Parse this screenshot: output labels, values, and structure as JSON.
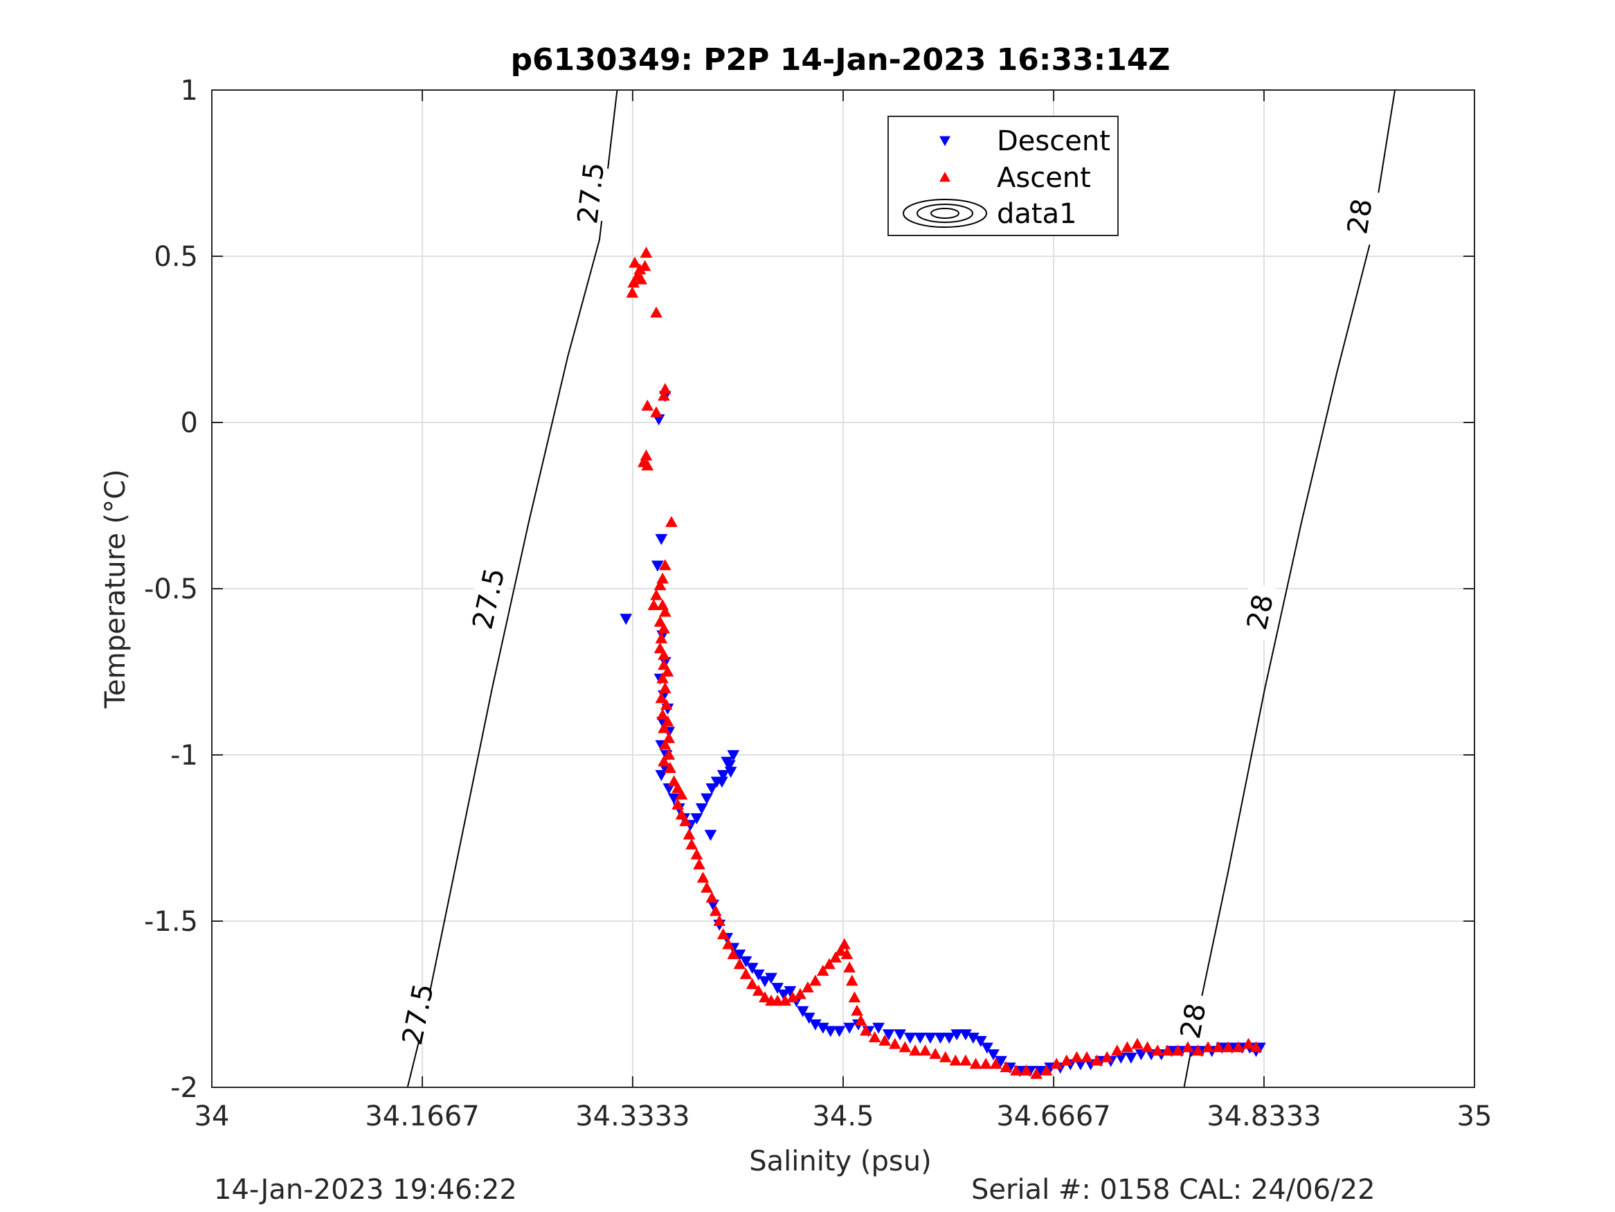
{
  "chart_data": {
    "type": "scatter",
    "title": "p6130349: P2P 14-Jan-2023 16:33:14Z",
    "xlabel": "Salinity (psu)",
    "ylabel": "Temperature (°C)",
    "xlim": [
      34,
      35
    ],
    "ylim": [
      -2,
      1
    ],
    "xticks": [
      34,
      34.1667,
      34.3333,
      34.5,
      34.6667,
      34.8333,
      35
    ],
    "xtick_labels": [
      "34",
      "34.1667",
      "34.3333",
      "34.5",
      "34.6667",
      "34.8333",
      "35"
    ],
    "yticks": [
      -2,
      -1.5,
      -1,
      -0.5,
      0,
      0.5,
      1
    ],
    "ytick_labels": [
      "-2",
      "-1.5",
      "-1",
      "-0.5",
      "0",
      "0.5",
      "1"
    ],
    "grid": true,
    "legend_position": "top-center",
    "legend": [
      "Descent",
      "Ascent",
      "data1"
    ],
    "series": [
      {
        "name": "Descent",
        "marker": "triangle-down",
        "color": "#0000ff",
        "points": [
          [
            34.328,
            -0.59
          ],
          [
            34.359,
            0.08
          ],
          [
            34.354,
            0.01
          ],
          [
            34.356,
            -0.35
          ],
          [
            34.353,
            -0.43
          ],
          [
            34.357,
            -0.64
          ],
          [
            34.359,
            -0.72
          ],
          [
            34.355,
            -0.77
          ],
          [
            34.358,
            -0.82
          ],
          [
            34.361,
            -0.86
          ],
          [
            34.357,
            -0.9
          ],
          [
            34.362,
            -0.93
          ],
          [
            34.356,
            -0.97
          ],
          [
            34.36,
            -1.0
          ],
          [
            34.359,
            -1.04
          ],
          [
            34.356,
            -1.06
          ],
          [
            34.362,
            -1.1
          ],
          [
            34.366,
            -1.13
          ],
          [
            34.37,
            -1.16
          ],
          [
            34.374,
            -1.19
          ],
          [
            34.379,
            -1.21
          ],
          [
            34.384,
            -1.19
          ],
          [
            34.388,
            -1.16
          ],
          [
            34.392,
            -1.13
          ],
          [
            34.396,
            -1.1
          ],
          [
            34.4,
            -1.08
          ],
          [
            34.405,
            -1.06
          ],
          [
            34.41,
            -1.03
          ],
          [
            34.413,
            -1.0
          ],
          [
            34.408,
            -1.02
          ],
          [
            34.411,
            -1.05
          ],
          [
            34.404,
            -1.08
          ],
          [
            34.395,
            -1.24
          ],
          [
            34.397,
            -1.45
          ],
          [
            34.402,
            -1.51
          ],
          [
            34.408,
            -1.55
          ],
          [
            34.413,
            -1.58
          ],
          [
            34.418,
            -1.6
          ],
          [
            34.423,
            -1.62
          ],
          [
            34.428,
            -1.64
          ],
          [
            34.433,
            -1.66
          ],
          [
            34.438,
            -1.68
          ],
          [
            34.443,
            -1.67
          ],
          [
            34.448,
            -1.7
          ],
          [
            34.453,
            -1.72
          ],
          [
            34.458,
            -1.71
          ],
          [
            34.463,
            -1.74
          ],
          [
            34.468,
            -1.77
          ],
          [
            34.473,
            -1.79
          ],
          [
            34.478,
            -1.81
          ],
          [
            34.484,
            -1.82
          ],
          [
            34.49,
            -1.83
          ],
          [
            34.497,
            -1.83
          ],
          [
            34.505,
            -1.82
          ],
          [
            34.512,
            -1.81
          ],
          [
            34.52,
            -1.83
          ],
          [
            34.528,
            -1.82
          ],
          [
            34.536,
            -1.84
          ],
          [
            34.545,
            -1.84
          ],
          [
            34.553,
            -1.85
          ],
          [
            34.561,
            -1.85
          ],
          [
            34.569,
            -1.85
          ],
          [
            34.577,
            -1.85
          ],
          [
            34.584,
            -1.85
          ],
          [
            34.59,
            -1.84
          ],
          [
            34.597,
            -1.84
          ],
          [
            34.603,
            -1.85
          ],
          [
            34.609,
            -1.86
          ],
          [
            34.614,
            -1.88
          ],
          [
            34.619,
            -1.9
          ],
          [
            34.625,
            -1.92
          ],
          [
            34.632,
            -1.94
          ],
          [
            34.64,
            -1.95
          ],
          [
            34.648,
            -1.95
          ],
          [
            34.656,
            -1.95
          ],
          [
            34.664,
            -1.94
          ],
          [
            34.672,
            -1.94
          ],
          [
            34.68,
            -1.93
          ],
          [
            34.688,
            -1.93
          ],
          [
            34.696,
            -1.93
          ],
          [
            34.704,
            -1.92
          ],
          [
            34.712,
            -1.92
          ],
          [
            34.72,
            -1.91
          ],
          [
            34.728,
            -1.91
          ],
          [
            34.736,
            -1.9
          ],
          [
            34.744,
            -1.9
          ],
          [
            34.752,
            -1.9
          ],
          [
            34.76,
            -1.89
          ],
          [
            34.768,
            -1.89
          ],
          [
            34.776,
            -1.89
          ],
          [
            34.784,
            -1.89
          ],
          [
            34.792,
            -1.89
          ],
          [
            34.8,
            -1.88
          ],
          [
            34.808,
            -1.88
          ],
          [
            34.816,
            -1.88
          ],
          [
            34.822,
            -1.88
          ],
          [
            34.827,
            -1.89
          ],
          [
            34.83,
            -1.88
          ]
        ]
      },
      {
        "name": "Ascent",
        "marker": "triangle-up",
        "color": "#ff0000",
        "points": [
          [
            34.344,
            0.51
          ],
          [
            34.335,
            0.48
          ],
          [
            34.343,
            0.47
          ],
          [
            34.339,
            0.46
          ],
          [
            34.337,
            0.44
          ],
          [
            34.334,
            0.42
          ],
          [
            34.34,
            0.43
          ],
          [
            34.333,
            0.39
          ],
          [
            34.352,
            0.33
          ],
          [
            34.359,
            0.1
          ],
          [
            34.358,
            0.08
          ],
          [
            34.345,
            0.05
          ],
          [
            34.352,
            0.03
          ],
          [
            34.344,
            -0.1
          ],
          [
            34.342,
            -0.12
          ],
          [
            34.345,
            -0.13
          ],
          [
            34.364,
            -0.3
          ],
          [
            34.359,
            -0.43
          ],
          [
            34.357,
            -0.47
          ],
          [
            34.355,
            -0.49
          ],
          [
            34.352,
            -0.52
          ],
          [
            34.35,
            -0.55
          ],
          [
            34.357,
            -0.55
          ],
          [
            34.359,
            -0.57
          ],
          [
            34.355,
            -0.6
          ],
          [
            34.358,
            -0.62
          ],
          [
            34.356,
            -0.65
          ],
          [
            34.355,
            -0.68
          ],
          [
            34.358,
            -0.7
          ],
          [
            34.358,
            -0.73
          ],
          [
            34.361,
            -0.75
          ],
          [
            34.357,
            -0.77
          ],
          [
            34.359,
            -0.8
          ],
          [
            34.356,
            -0.83
          ],
          [
            34.36,
            -0.85
          ],
          [
            34.357,
            -0.88
          ],
          [
            34.361,
            -0.9
          ],
          [
            34.358,
            -0.92
          ],
          [
            34.362,
            -0.95
          ],
          [
            34.359,
            -0.97
          ],
          [
            34.362,
            -1.0
          ],
          [
            34.358,
            -1.02
          ],
          [
            34.363,
            -1.04
          ],
          [
            34.366,
            -1.08
          ],
          [
            34.369,
            -1.1
          ],
          [
            34.372,
            -1.12
          ],
          [
            34.369,
            -1.15
          ],
          [
            34.372,
            -1.18
          ],
          [
            34.375,
            -1.2
          ],
          [
            34.378,
            -1.24
          ],
          [
            34.38,
            -1.27
          ],
          [
            34.384,
            -1.3
          ],
          [
            34.386,
            -1.33
          ],
          [
            34.389,
            -1.37
          ],
          [
            34.392,
            -1.4
          ],
          [
            34.396,
            -1.43
          ],
          [
            34.399,
            -1.47
          ],
          [
            34.402,
            -1.5
          ],
          [
            34.405,
            -1.54
          ],
          [
            34.409,
            -1.57
          ],
          [
            34.413,
            -1.6
          ],
          [
            34.418,
            -1.63
          ],
          [
            34.423,
            -1.66
          ],
          [
            34.428,
            -1.69
          ],
          [
            34.433,
            -1.71
          ],
          [
            34.438,
            -1.73
          ],
          [
            34.443,
            -1.74
          ],
          [
            34.448,
            -1.74
          ],
          [
            34.454,
            -1.74
          ],
          [
            34.46,
            -1.73
          ],
          [
            34.466,
            -1.72
          ],
          [
            34.472,
            -1.7
          ],
          [
            34.478,
            -1.68
          ],
          [
            34.484,
            -1.65
          ],
          [
            34.489,
            -1.63
          ],
          [
            34.494,
            -1.61
          ],
          [
            34.498,
            -1.59
          ],
          [
            34.501,
            -1.57
          ],
          [
            34.503,
            -1.6
          ],
          [
            34.505,
            -1.64
          ],
          [
            34.507,
            -1.68
          ],
          [
            34.509,
            -1.73
          ],
          [
            34.511,
            -1.77
          ],
          [
            34.514,
            -1.8
          ],
          [
            34.518,
            -1.83
          ],
          [
            34.525,
            -1.85
          ],
          [
            34.533,
            -1.86
          ],
          [
            34.541,
            -1.87
          ],
          [
            34.549,
            -1.88
          ],
          [
            34.557,
            -1.89
          ],
          [
            34.565,
            -1.89
          ],
          [
            34.573,
            -1.9
          ],
          [
            34.581,
            -1.91
          ],
          [
            34.589,
            -1.92
          ],
          [
            34.597,
            -1.92
          ],
          [
            34.605,
            -1.93
          ],
          [
            34.613,
            -1.93
          ],
          [
            34.621,
            -1.93
          ],
          [
            34.629,
            -1.94
          ],
          [
            34.637,
            -1.95
          ],
          [
            34.645,
            -1.95
          ],
          [
            34.653,
            -1.96
          ],
          [
            34.661,
            -1.95
          ],
          [
            34.669,
            -1.93
          ],
          [
            34.677,
            -1.92
          ],
          [
            34.685,
            -1.91
          ],
          [
            34.693,
            -1.91
          ],
          [
            34.701,
            -1.92
          ],
          [
            34.709,
            -1.91
          ],
          [
            34.717,
            -1.89
          ],
          [
            34.725,
            -1.88
          ],
          [
            34.733,
            -1.87
          ],
          [
            34.741,
            -1.88
          ],
          [
            34.749,
            -1.89
          ],
          [
            34.757,
            -1.89
          ],
          [
            34.765,
            -1.89
          ],
          [
            34.773,
            -1.88
          ],
          [
            34.781,
            -1.89
          ],
          [
            34.789,
            -1.88
          ],
          [
            34.797,
            -1.88
          ],
          [
            34.805,
            -1.88
          ],
          [
            34.813,
            -1.88
          ],
          [
            34.821,
            -1.87
          ],
          [
            34.827,
            -1.88
          ]
        ]
      }
    ],
    "isopycnals": [
      {
        "label": "27.5",
        "points": [
          [
            34.155,
            -2.0
          ],
          [
            34.168,
            -1.8
          ],
          [
            34.195,
            -1.3
          ],
          [
            34.222,
            -0.8
          ],
          [
            34.251,
            -0.3
          ],
          [
            34.282,
            0.2
          ],
          [
            34.307,
            0.55
          ],
          [
            34.321,
            1.0
          ]
        ],
        "label_positions": [
          [
            34.163,
            -1.78
          ],
          [
            34.219,
            -0.53
          ],
          [
            34.3,
            0.69
          ]
        ]
      },
      {
        "label": "28",
        "points": [
          [
            34.77,
            -2.0
          ],
          [
            34.78,
            -1.8
          ],
          [
            34.805,
            -1.35
          ],
          [
            34.834,
            -0.8
          ],
          [
            34.863,
            -0.3
          ],
          [
            34.891,
            0.15
          ],
          [
            34.918,
            0.55
          ],
          [
            34.937,
            1.0
          ]
        ],
        "label_positions": [
          [
            34.777,
            -1.8
          ],
          [
            34.83,
            -0.57
          ],
          [
            34.909,
            0.62
          ]
        ]
      }
    ]
  },
  "footer": {
    "left": "14-Jan-2023 19:46:22",
    "right": "Serial #: 0158  CAL: 24/06/22"
  }
}
